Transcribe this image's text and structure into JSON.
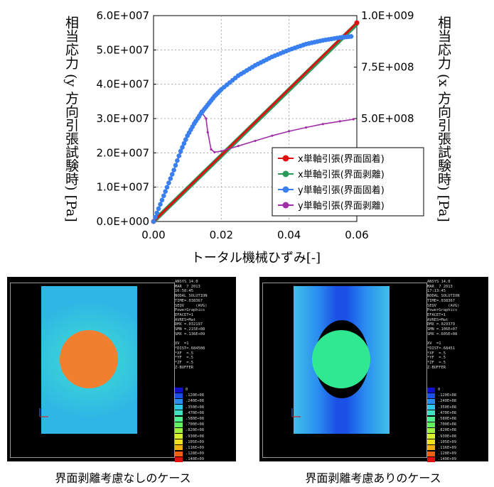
{
  "chart_data": {
    "type": "line",
    "xlabel": "トータル機械ひずみ[-]",
    "ylabel_left": "相当応力 (y 方向引張試験時) [Pa]",
    "ylabel_right": "相当応力 (x 方向引張試験時) [Pa]",
    "xlim": [
      0,
      0.06
    ],
    "ylim_left": [
      0,
      60000000
    ],
    "ylim_right": [
      0,
      1000000000
    ],
    "x_ticks": [
      "0.00",
      "0.02",
      "0.04",
      "0.06"
    ],
    "y_left_ticks": [
      "0.0E+000",
      "1.0E+007",
      "2.0E+007",
      "3.0E+007",
      "4.0E+007",
      "5.0E+007",
      "6.0E+007"
    ],
    "y_right_ticks": [
      "5.0E+008",
      "7.5E+008",
      "1.0E+009"
    ],
    "grid": true,
    "legend_position": "bottom-right",
    "series": [
      {
        "name": "x単軸引張(界面固着)",
        "color": "#e01010",
        "axis": "right",
        "x": [
          0,
          0.06
        ],
        "y": [
          0,
          965000000
        ]
      },
      {
        "name": "x単軸引張(界面剥離)",
        "color": "#2a9a5a",
        "axis": "right",
        "x": [
          0,
          0.06
        ],
        "y": [
          0,
          960000000
        ]
      },
      {
        "name": "y単軸引張(界面固着)",
        "color": "#3a7ff0",
        "axis": "left",
        "x": [
          0,
          0.002,
          0.004,
          0.006,
          0.008,
          0.01,
          0.012,
          0.014,
          0.016,
          0.018,
          0.02,
          0.025,
          0.03,
          0.035,
          0.04,
          0.045,
          0.05,
          0.055,
          0.059
        ],
        "y": [
          0,
          5000000,
          10000000,
          15000000,
          20500000,
          25000000,
          28500000,
          31500000,
          34000000,
          36500000,
          38500000,
          42500000,
          45500000,
          48000000,
          50000000,
          51700000,
          52800000,
          53600000,
          54000000
        ]
      },
      {
        "name": "y単軸引張(界面剥離)",
        "color": "#a02ea8",
        "axis": "left",
        "x": [
          0,
          0.004,
          0.008,
          0.012,
          0.014,
          0.0155,
          0.016,
          0.017,
          0.018,
          0.02,
          0.025,
          0.03,
          0.035,
          0.04,
          0.045,
          0.05,
          0.055,
          0.059
        ],
        "y": [
          0,
          10000000,
          20000000,
          29000000,
          32200000,
          30000000,
          26000000,
          21000000,
          20200000,
          20500000,
          22000000,
          23500000,
          25000000,
          26300000,
          27400000,
          28400000,
          29200000,
          29800000
        ]
      }
    ]
  },
  "fea_panels": [
    {
      "caption": "界面剥離考慮なしのケース",
      "info": "ANSYS 14.0\nMAR  7 2013\n16:58:45\nNODAL SOLUTION\nTIME=.038367\nSEQV     (AVG)\nPowerGraphics\nEFACET=1\nAVRES=Mat\nDMX =.032197\nSMN =.215E+08\nSMX =.136E+09\n\nXV  =1\n*DIST=.684508\n*XF  =.5\n*YF  =.5\n*ZF  =.5\nZ-BUFFER",
      "scale": [
        "0",
        ".120E+08",
        ".240E+08",
        ".350E+08",
        ".470E+08",
        ".580E+08",
        ".700E+08",
        ".820E+08",
        ".930E+08",
        ".105E+09",
        ".116E+09",
        ".128E+09",
        ".140E+09"
      ]
    },
    {
      "caption": "界面剥離考慮ありのケース",
      "info": "ANSYS 14.0\nMAR  7 2013\n17:13:45\nNODAL SOLUTION\nTIME=.038367\nSEQV     (AVG)\nPowerGraphics\nEFACET=1\nAVRES=Mat\nDMX =.029379\nSMN =.106E+07\nSMX =.605E+08\n\nXV  =1\n*DIST=.68451\n*XF  =.5\n*YF  =.5\n*ZF  =.5\nZ-BUFFER",
      "scale": [
        "0",
        ".120E+08",
        ".240E+08",
        ".350E+08",
        ".470E+08",
        ".580E+08",
        ".700E+08",
        ".820E+08",
        ".930E+08",
        ".105E+09",
        ".116E+09",
        ".128E+09",
        ".140E+09"
      ]
    }
  ],
  "colors": {
    "scale": [
      "#1010c8",
      "#1a50e6",
      "#2a8ef0",
      "#30c8e8",
      "#40e0c0",
      "#50f090",
      "#60f060",
      "#a0f040",
      "#d8f030",
      "#f0e020",
      "#f0b010",
      "#f06010",
      "#e01010"
    ]
  }
}
